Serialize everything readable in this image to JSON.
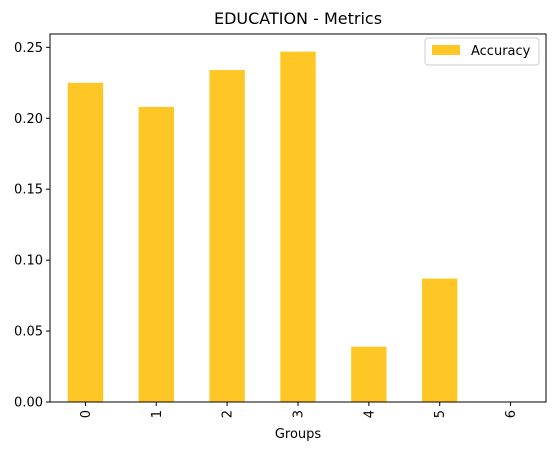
{
  "chart_data": {
    "type": "bar",
    "title": "EDUCATION - Metrics",
    "xlabel": "Groups",
    "ylabel": "",
    "categories": [
      "0",
      "1",
      "2",
      "3",
      "4",
      "5",
      "6"
    ],
    "series": [
      {
        "name": "Accuracy",
        "values": [
          0.225,
          0.208,
          0.234,
          0.247,
          0.039,
          0.087,
          0.0
        ],
        "color": "#ffc726"
      }
    ],
    "ylim": [
      0,
      0.2594
    ],
    "yticks": [
      0.0,
      0.05,
      0.1,
      0.15,
      0.2,
      0.25
    ],
    "ytick_labels": [
      "0.00",
      "0.05",
      "0.10",
      "0.15",
      "0.20",
      "0.25"
    ],
    "xtick_rotation": "vertical",
    "grid": false,
    "legend_position": "top-right"
  }
}
